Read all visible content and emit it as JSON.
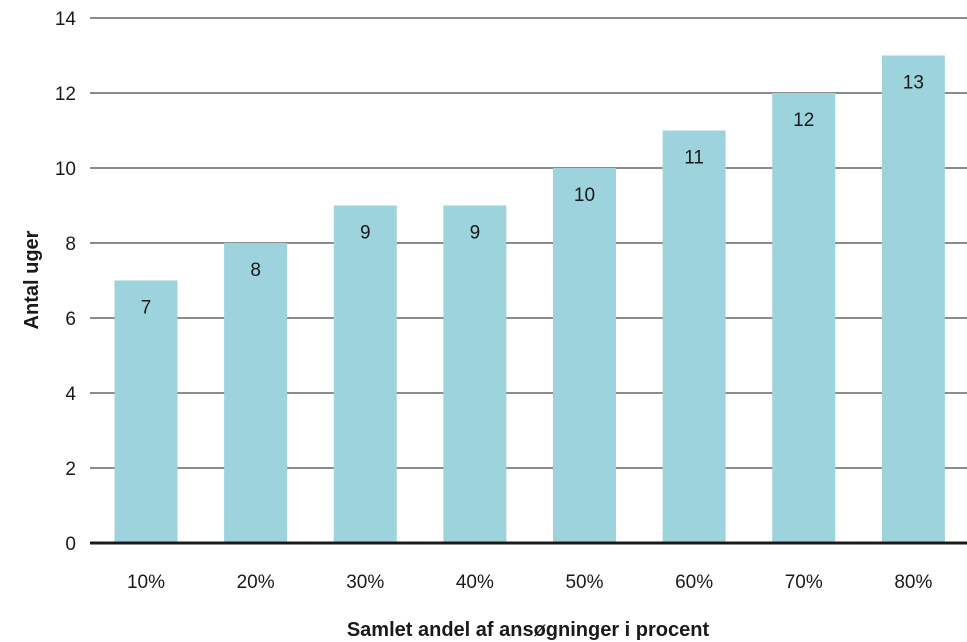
{
  "chart_data": {
    "type": "bar",
    "categories": [
      "10%",
      "20%",
      "30%",
      "40%",
      "50%",
      "60%",
      "70%",
      "80%"
    ],
    "values": [
      7,
      8,
      9,
      9,
      10,
      11,
      12,
      13
    ],
    "data_labels": [
      "7",
      "8",
      "9",
      "9",
      "10",
      "11",
      "12",
      "13"
    ],
    "xlabel": "Samlet andel af ansøgninger i procent",
    "ylabel": "Antal uger",
    "ylim": [
      0,
      14
    ],
    "yticks": [
      "0",
      "2",
      "4",
      "6",
      "8",
      "10",
      "12",
      "14"
    ],
    "grid": true,
    "bar_color": "#9cd3dc",
    "grid_color": "#1a1a1a"
  }
}
